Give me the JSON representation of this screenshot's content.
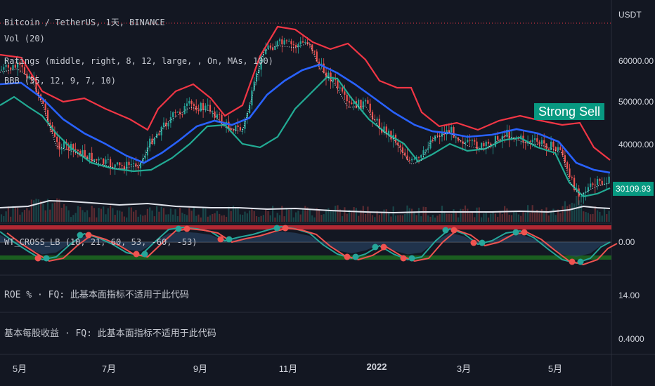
{
  "header": {
    "symbol": "Bitcoin / TetherUS, 1天, BINANCE",
    "indicators": [
      "Vol (20)",
      "Ratings (middle, right, 8, 12, large, , On, MAs, 100)",
      "BBB (35, 12, 9, 7, 10)"
    ]
  },
  "panes": {
    "oscillator_label": "WT_CROSS_LB (10, 21, 60, 53, -60, -53)",
    "roe_label": "ROE % · FQ: 此基本面指标不适用于此代码",
    "eps_label": "基本每股收益 · FQ: 此基本面指标不适用于此代码"
  },
  "price_axis": {
    "unit": "USDT",
    "ticks": [
      "60000.00",
      "50000.00",
      "40000.00"
    ],
    "current_price": "30109.93"
  },
  "pane_axes": {
    "oscillator_tick": "0.00",
    "roe_tick": "14.00",
    "eps_tick": "0.4000"
  },
  "rating_signal": "Strong Sell",
  "time_axis": [
    "5月",
    "7月",
    "9月",
    "11月",
    "2022",
    "3月",
    "5月"
  ],
  "colors": {
    "background": "#131722",
    "upper_band": "#f23645",
    "basis": "#2962ff",
    "lower_band": "#22ab94",
    "bull": "#26a69a",
    "bear": "#ef5350",
    "volume_ma": "#e0e3eb",
    "signal_bg": "#089981"
  }
}
